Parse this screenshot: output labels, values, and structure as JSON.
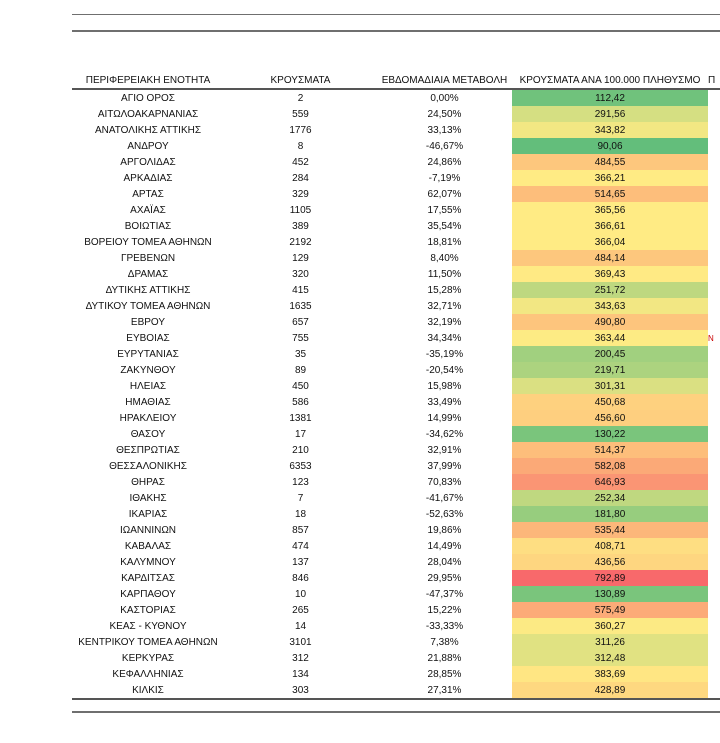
{
  "headers": [
    "ΠΕΡΙΦΕΡΕΙΑΚΗ ΕΝΟΤΗΤΑ",
    "ΚΡΟΥΣΜΑΤΑ",
    "ΕΒΔΟΜΑΔΙΑΙΑ ΜΕΤΑΒΟΛΗ",
    "ΚΡΟΥΣΜΑΤΑ ΑΝΑ 100.000 ΠΛΗΘΥΣΜΟ",
    "Π"
  ],
  "color_scale": {
    "low": "#63BE7B",
    "mid": "#FFEB84",
    "high": "#F8696B"
  },
  "rows": [
    [
      "ΑΓΙΟ ΟΡΟΣ",
      "2",
      "0,00%",
      "112,42"
    ],
    [
      "ΑΙΤΩΛΟΑΚΑΡΝΑΝΙΑΣ",
      "559",
      "24,50%",
      "291,56"
    ],
    [
      "ΑΝΑΤΟΛΙΚΗΣ ΑΤΤΙΚΗΣ",
      "1776",
      "33,13%",
      "343,82"
    ],
    [
      "ΑΝΔΡΟΥ",
      "8",
      "-46,67%",
      "90,06"
    ],
    [
      "ΑΡΓΟΛΙΔΑΣ",
      "452",
      "24,86%",
      "484,55"
    ],
    [
      "ΑΡΚΑΔΙΑΣ",
      "284",
      "-7,19%",
      "366,21"
    ],
    [
      "ΑΡΤΑΣ",
      "329",
      "62,07%",
      "514,65"
    ],
    [
      "ΑΧΑΪΑΣ",
      "1105",
      "17,55%",
      "365,56"
    ],
    [
      "ΒΟΙΩΤΙΑΣ",
      "389",
      "35,54%",
      "366,61"
    ],
    [
      "ΒΟΡΕΙΟΥ ΤΟΜΕΑ ΑΘΗΝΩΝ",
      "2192",
      "18,81%",
      "366,04"
    ],
    [
      "ΓΡΕΒΕΝΩΝ",
      "129",
      "8,40%",
      "484,14"
    ],
    [
      "ΔΡΑΜΑΣ",
      "320",
      "11,50%",
      "369,43"
    ],
    [
      "ΔΥΤΙΚΗΣ ΑΤΤΙΚΗΣ",
      "415",
      "15,28%",
      "251,72"
    ],
    [
      "ΔΥΤΙΚΟΥ ΤΟΜΕΑ ΑΘΗΝΩΝ",
      "1635",
      "32,71%",
      "343,63"
    ],
    [
      "ΕΒΡΟΥ",
      "657",
      "32,19%",
      "490,80"
    ],
    [
      "ΕΥΒΟΙΑΣ",
      "755",
      "34,34%",
      "363,44"
    ],
    [
      "ΕΥΡΥΤΑΝΙΑΣ",
      "35",
      "-35,19%",
      "200,45"
    ],
    [
      "ΖΑΚΥΝΘΟΥ",
      "89",
      "-20,54%",
      "219,71"
    ],
    [
      "ΗΛΕΙΑΣ",
      "450",
      "15,98%",
      "301,31"
    ],
    [
      "ΗΜΑΘΙΑΣ",
      "586",
      "33,49%",
      "450,68"
    ],
    [
      "ΗΡΑΚΛΕΙΟΥ",
      "1381",
      "14,99%",
      "456,60"
    ],
    [
      "ΘΑΣΟΥ",
      "17",
      "-34,62%",
      "130,22"
    ],
    [
      "ΘΕΣΠΡΩΤΙΑΣ",
      "210",
      "32,91%",
      "514,37"
    ],
    [
      "ΘΕΣΣΑΛΟΝΙΚΗΣ",
      "6353",
      "37,99%",
      "582,08"
    ],
    [
      "ΘΗΡΑΣ",
      "123",
      "70,83%",
      "646,93"
    ],
    [
      "ΙΘΑΚΗΣ",
      "7",
      "-41,67%",
      "252,34"
    ],
    [
      "ΙΚΑΡΙΑΣ",
      "18",
      "-52,63%",
      "181,80"
    ],
    [
      "ΙΩΑΝΝΙΝΩΝ",
      "857",
      "19,86%",
      "535,44"
    ],
    [
      "ΚΑΒΑΛΑΣ",
      "474",
      "14,49%",
      "408,71"
    ],
    [
      "ΚΑΛΥΜΝΟΥ",
      "137",
      "28,04%",
      "436,56"
    ],
    [
      "ΚΑΡΔΙΤΣΑΣ",
      "846",
      "29,95%",
      "792,89"
    ],
    [
      "ΚΑΡΠΑΘΟΥ",
      "10",
      "-47,37%",
      "130,89"
    ],
    [
      "ΚΑΣΤΟΡΙΑΣ",
      "265",
      "15,22%",
      "575,49"
    ],
    [
      "ΚΕΑΣ - ΚΥΘΝΟΥ",
      "14",
      "-33,33%",
      "360,27"
    ],
    [
      "ΚΕΝΤΡΙΚΟΥ ΤΟΜΕΑ ΑΘΗΝΩΝ",
      "3101",
      "7,38%",
      "311,26"
    ],
    [
      "ΚΕΡΚΥΡΑΣ",
      "312",
      "21,88%",
      "312,48"
    ],
    [
      "ΚΕΦΑΛΛΗΝΙΑΣ",
      "134",
      "28,85%",
      "383,69"
    ],
    [
      "ΚΙΛΚΙΣ",
      "303",
      "27,31%",
      "428,89"
    ]
  ],
  "side_marks": {
    "15": "N"
  }
}
